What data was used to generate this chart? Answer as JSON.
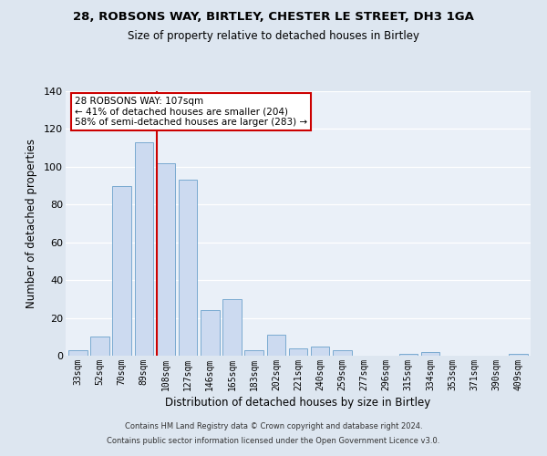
{
  "title1": "28, ROBSONS WAY, BIRTLEY, CHESTER LE STREET, DH3 1GA",
  "title2": "Size of property relative to detached houses in Birtley",
  "xlabel": "Distribution of detached houses by size in Birtley",
  "ylabel": "Number of detached properties",
  "bar_labels": [
    "33sqm",
    "52sqm",
    "70sqm",
    "89sqm",
    "108sqm",
    "127sqm",
    "146sqm",
    "165sqm",
    "183sqm",
    "202sqm",
    "221sqm",
    "240sqm",
    "259sqm",
    "277sqm",
    "296sqm",
    "315sqm",
    "334sqm",
    "353sqm",
    "371sqm",
    "390sqm",
    "409sqm"
  ],
  "bar_heights": [
    3,
    10,
    90,
    113,
    102,
    93,
    24,
    30,
    3,
    11,
    4,
    5,
    3,
    0,
    0,
    1,
    2,
    0,
    0,
    0,
    1
  ],
  "bar_color": "#ccdaf0",
  "bar_edge_color": "#7aaad0",
  "vline_color": "#cc0000",
  "vline_pos": 3.575,
  "annotation_title": "28 ROBSONS WAY: 107sqm",
  "annotation_line1": "← 41% of detached houses are smaller (204)",
  "annotation_line2": "58% of semi-detached houses are larger (283) →",
  "annotation_box_color": "#cc0000",
  "ylim": [
    0,
    140
  ],
  "yticks": [
    0,
    20,
    40,
    60,
    80,
    100,
    120,
    140
  ],
  "footer1": "Contains HM Land Registry data © Crown copyright and database right 2024.",
  "footer2": "Contains public sector information licensed under the Open Government Licence v3.0.",
  "bg_color": "#dde6f0",
  "plot_bg_color": "#eaf0f8"
}
